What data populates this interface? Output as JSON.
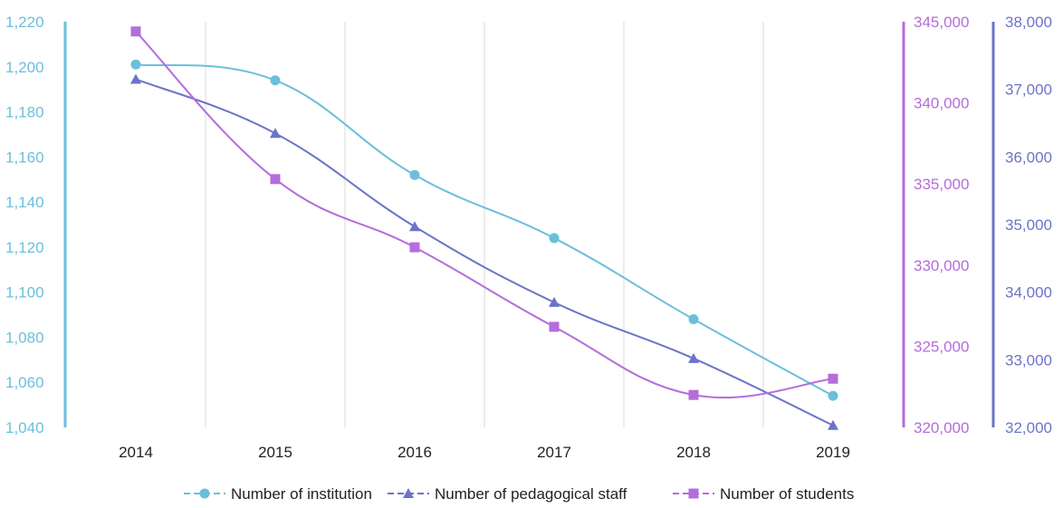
{
  "chart_data": {
    "type": "line",
    "title": "",
    "xlabel": "",
    "categories": [
      "2014",
      "2015",
      "2016",
      "2017",
      "2018",
      "2019"
    ],
    "series": [
      {
        "name": "Number of institution",
        "axis": "left",
        "color": "#6bbfdc",
        "marker": "circle",
        "values": [
          1201,
          1194,
          1152,
          1124,
          1088,
          1054
        ]
      },
      {
        "name": "Number of pedagogical staff",
        "axis": "right-outer",
        "color": "#6b74c8",
        "marker": "triangle",
        "values": [
          37150,
          36350,
          34970,
          33850,
          33020,
          32030
        ]
      },
      {
        "name": "Number of students",
        "axis": "right-inner",
        "color": "#b46ddb",
        "marker": "square",
        "values": [
          344400,
          335300,
          331100,
          326200,
          322000,
          323000
        ]
      }
    ],
    "axes": {
      "left": {
        "range": [
          1040,
          1220
        ],
        "ticks": [
          "1,040",
          "1,060",
          "1,080",
          "1,100",
          "1,120",
          "1,140",
          "1,160",
          "1,180",
          "1,200",
          "1,220"
        ],
        "color": "#6bbfdc"
      },
      "right_inner": {
        "range": [
          320000,
          345000
        ],
        "ticks": [
          "320,000",
          "325,000",
          "330,000",
          "335,000",
          "340,000",
          "345,000"
        ],
        "color": "#b46ddb"
      },
      "right_outer": {
        "range": [
          32000,
          38000
        ],
        "ticks": [
          "32,000",
          "33,000",
          "34,000",
          "35,000",
          "36,000",
          "37,000",
          "38,000"
        ],
        "color": "#6b74c8"
      }
    },
    "grid": "vertical",
    "legend_position": "bottom-center"
  }
}
